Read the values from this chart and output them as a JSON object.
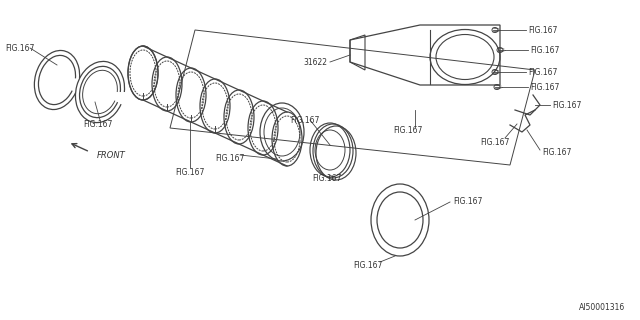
{
  "bg_color": "#ffffff",
  "line_color": "#444444",
  "text_color": "#333333",
  "title_code": "AI50001316",
  "part_number": "31622",
  "fig_label": "FIG.167",
  "front_label": "FRONT"
}
